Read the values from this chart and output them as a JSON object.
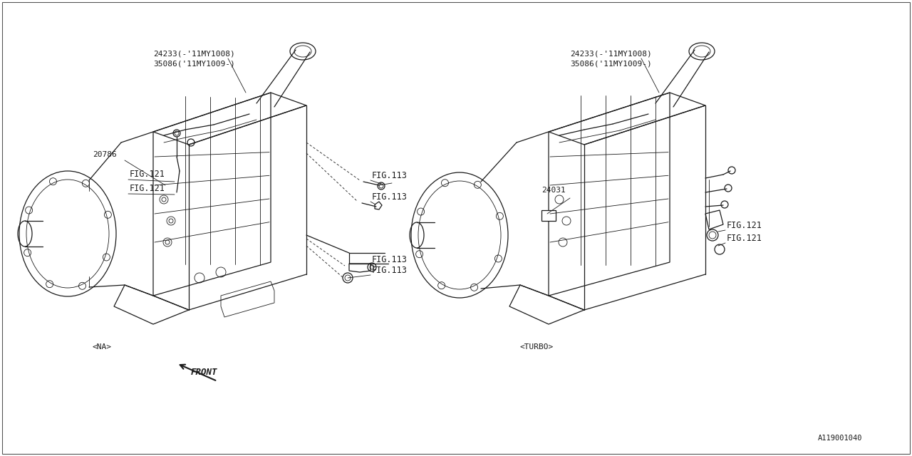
{
  "bg_color": "#ffffff",
  "line_color": "#1a1a1a",
  "text_color": "#1a1a1a",
  "fig_width": 12.8,
  "fig_height": 6.4,
  "part_label_1a": "24233(-'11MY1008)",
  "part_label_1b": "35086('11MY1009-)",
  "part_label_2a": "24233(-'11MY1008)",
  "part_label_2b": "35086('11MY1009-)",
  "label_20786": "20786",
  "label_fig121_1": "FIG.121",
  "label_fig121_2": "FIG.121",
  "label_fig121_3": "FIG.121",
  "label_fig121_4": "FIG.121",
  "label_fig113_1": "FIG.113",
  "label_fig113_2": "FIG.113",
  "label_fig113_3": "FIG.113",
  "label_fig113_4": "FIG.113",
  "label_24031": "24031",
  "label_na": "<NA>",
  "label_turbo": "<TURBO>",
  "label_front": "FRONT",
  "part_number": "A119001040",
  "font_size_labels": 8.5,
  "font_size_part": 8,
  "font_size_small": 7.5,
  "font_size_front": 9
}
